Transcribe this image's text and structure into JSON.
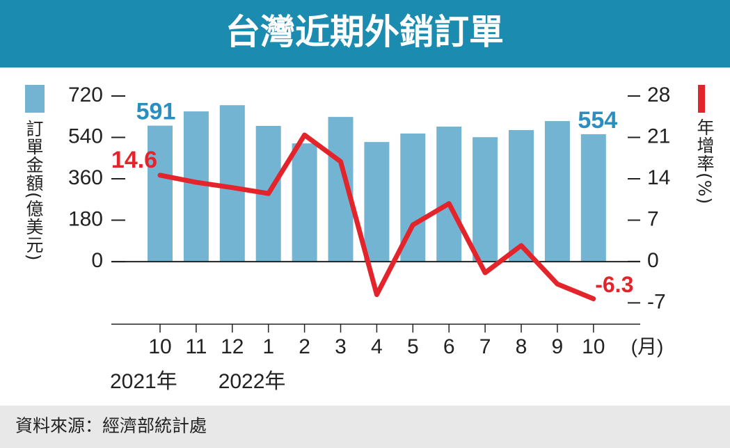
{
  "chart_data": {
    "type": "bar-line",
    "title": "台灣近期外銷訂單",
    "categories": [
      "10",
      "11",
      "12",
      "1",
      "2",
      "3",
      "4",
      "5",
      "6",
      "7",
      "8",
      "9",
      "10"
    ],
    "x_unit": "(月)",
    "year_labels": [
      "2021年",
      "2022年"
    ],
    "series": [
      {
        "name": "訂單金額(億美元)",
        "type": "bar",
        "color": "#74b4d3",
        "values": [
          591,
          653,
          680,
          590,
          514,
          629,
          520,
          557,
          587,
          541,
          572,
          611,
          554
        ]
      },
      {
        "name": "年增率(%)",
        "type": "line",
        "axis": "y2",
        "color": "#e3242b",
        "values": [
          14.6,
          13.4,
          12.5,
          11.5,
          21.4,
          16.9,
          -5.6,
          6.2,
          9.8,
          -1.9,
          2.7,
          -3.8,
          -6.3
        ]
      }
    ],
    "ylim": [
      -272,
      720
    ],
    "yticks": [
      0,
      180,
      360,
      540,
      720
    ],
    "y2lim": [
      -10.6,
      28
    ],
    "y2ticks": [
      -7,
      0,
      7,
      14,
      21,
      28
    ]
  },
  "source": "資料來源：經濟部統計處"
}
